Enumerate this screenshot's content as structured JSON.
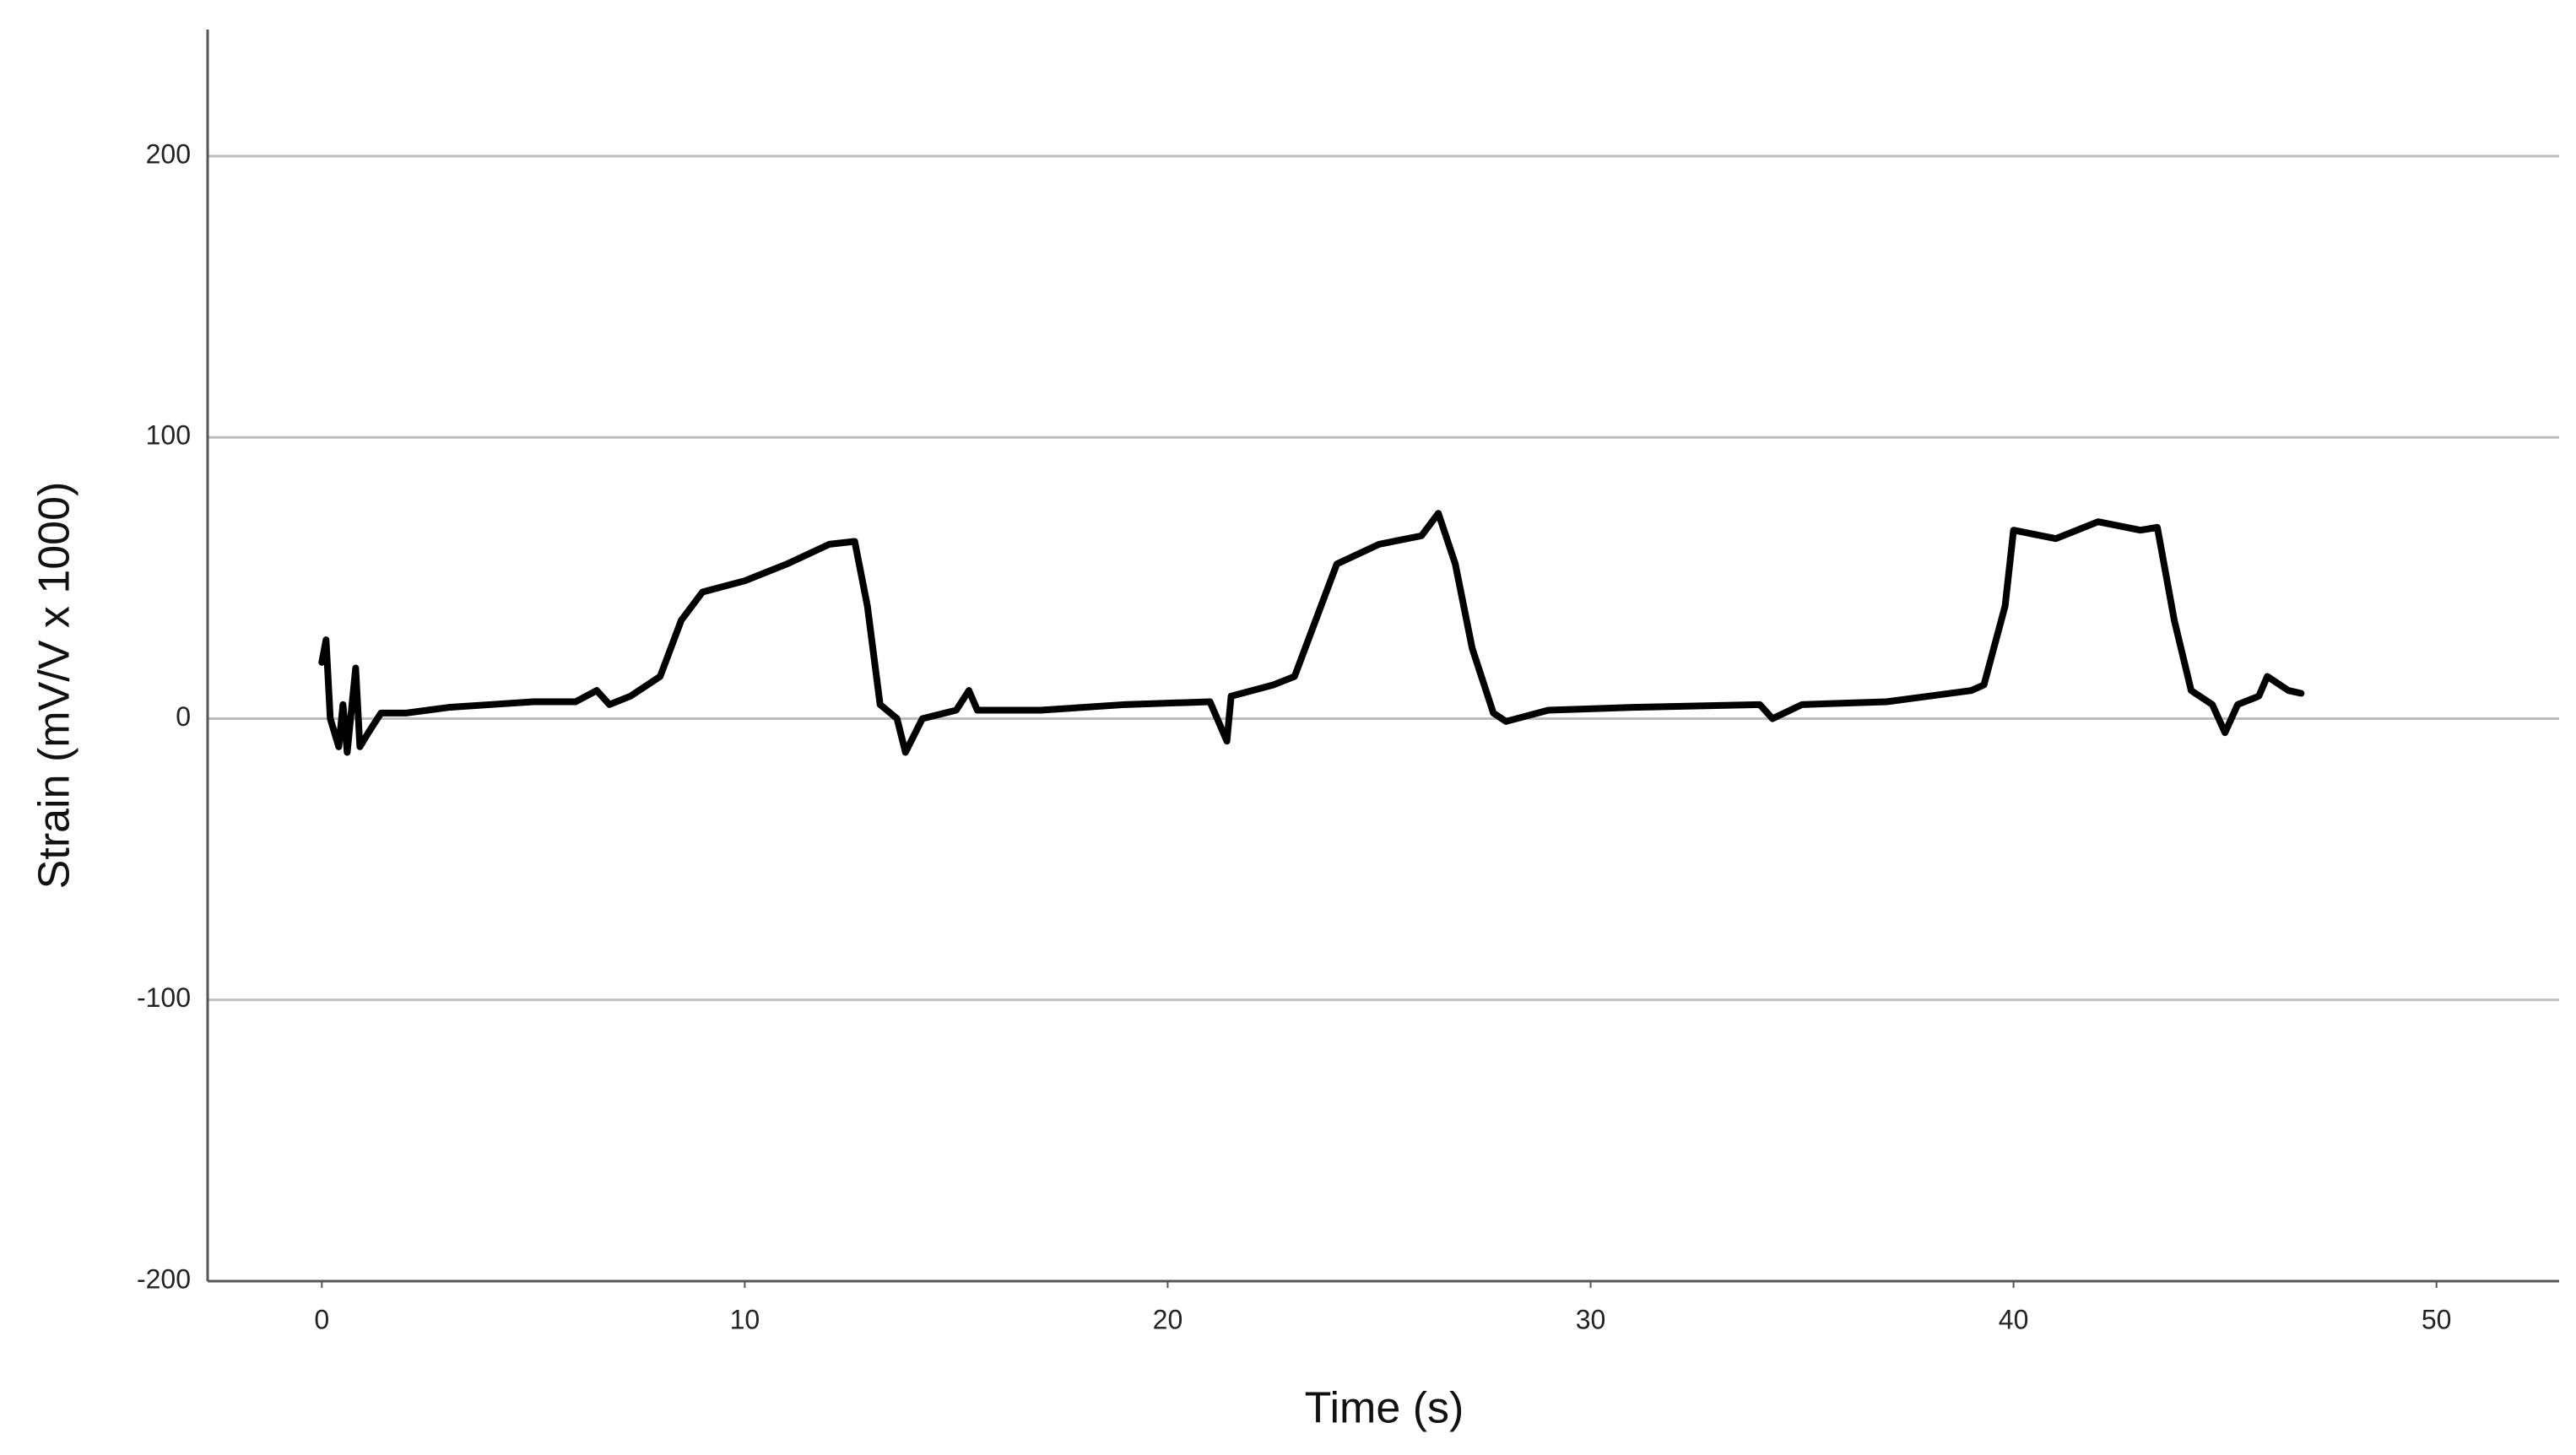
{
  "chart_data": {
    "type": "line",
    "x_label": "Time (s)",
    "y_label": "Strain (mV/V x 1000)",
    "x": [
      0,
      0.1,
      0.2,
      0.4,
      0.5,
      0.6,
      0.8,
      0.9,
      1.1,
      1.4,
      2,
      3,
      4,
      5,
      6,
      6.5,
      6.8,
      7.3,
      8,
      8.5,
      9,
      10,
      11,
      12,
      12.6,
      12.9,
      13.2,
      13.6,
      13.8,
      14.2,
      15,
      15.3,
      15.5,
      17,
      19,
      21,
      21.4,
      21.5,
      22.5,
      23,
      23.5,
      24,
      25,
      26,
      26.4,
      26.8,
      27.2,
      27.7,
      28,
      29,
      31,
      34,
      34.3,
      35,
      37,
      39,
      39.3,
      39.8,
      40,
      41,
      42,
      43,
      43.4,
      43.8,
      44.2,
      44.7,
      45,
      45.3,
      45.8,
      46,
      46.5,
      46.8
    ],
    "series": [
      {
        "color": "#000000",
        "values": [
          20,
          28,
          0,
          -10,
          5,
          -12,
          18,
          -10,
          -5,
          2,
          2,
          4,
          5,
          6,
          6,
          10,
          5,
          8,
          15,
          35,
          45,
          49,
          55,
          62,
          63,
          40,
          5,
          0,
          -12,
          0,
          3,
          10,
          3,
          3,
          5,
          6,
          -8,
          8,
          12,
          15,
          35,
          55,
          62,
          65,
          73,
          55,
          25,
          2,
          -1,
          3,
          4,
          5,
          0,
          5,
          6,
          10,
          12,
          40,
          67,
          64,
          70,
          67,
          68,
          35,
          10,
          5,
          -5,
          5,
          8,
          15,
          10,
          9
        ]
      }
    ],
    "xlim": [
      -2.7,
      52.9
    ],
    "xticks": [
      0,
      10,
      20,
      30,
      40,
      50
    ],
    "ylim": [
      -200,
      245
    ],
    "yticks": [
      -200,
      -100,
      0,
      100,
      200
    ],
    "grid": true
  }
}
